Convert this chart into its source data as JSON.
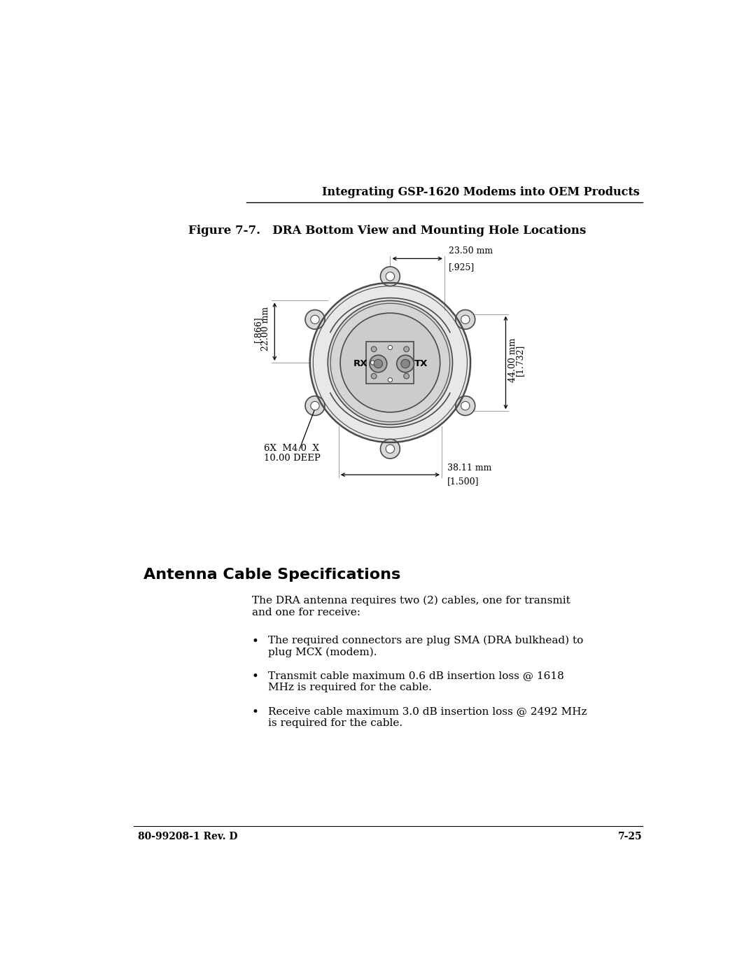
{
  "page_header": "Integrating GSP-1620 Modems into OEM Products",
  "figure_title": "Figure 7-7.   DRA Bottom View and Mounting Hole Locations",
  "section_title": "Antenna Cable Specifications",
  "body_text_line1": "The DRA antenna requires two (2) cables, one for transmit",
  "body_text_line2": "and one for receive:",
  "bullet1_line1": "The required connectors are plug SMA (DRA bulkhead) to",
  "bullet1_line2": "plug MCX (modem).",
  "bullet2_line1": "Transmit cable maximum 0.6 dB insertion loss @ 1618",
  "bullet2_line2": "MHz is required for the cable.",
  "bullet3_line1": "Receive cable maximum 3.0 dB insertion loss @ 2492 MHz",
  "bullet3_line2": "is required for the cable.",
  "footer_left": "80-99208-1 Rev. D",
  "footer_right": "7-25",
  "dim_top_line1": "23.50 mm",
  "dim_top_line2": "[.925]",
  "dim_right_line1": "44.00 mm",
  "dim_right_line2": "[1.732]",
  "dim_left_line1": "22.00 mm",
  "dim_left_line2": "[.866]",
  "dim_bottom_line1": "38.11 mm",
  "dim_bottom_line2": "[1.500]",
  "label_holes_line1": "6X  M4.0  X",
  "label_holes_line2": "10.00 DEEP",
  "label_rx": "RX",
  "label_tx": "TX",
  "bg_color": "#ffffff",
  "text_color": "#000000",
  "draw_color": "#4a4a4a",
  "dim_line_color": "#b0a0a0"
}
